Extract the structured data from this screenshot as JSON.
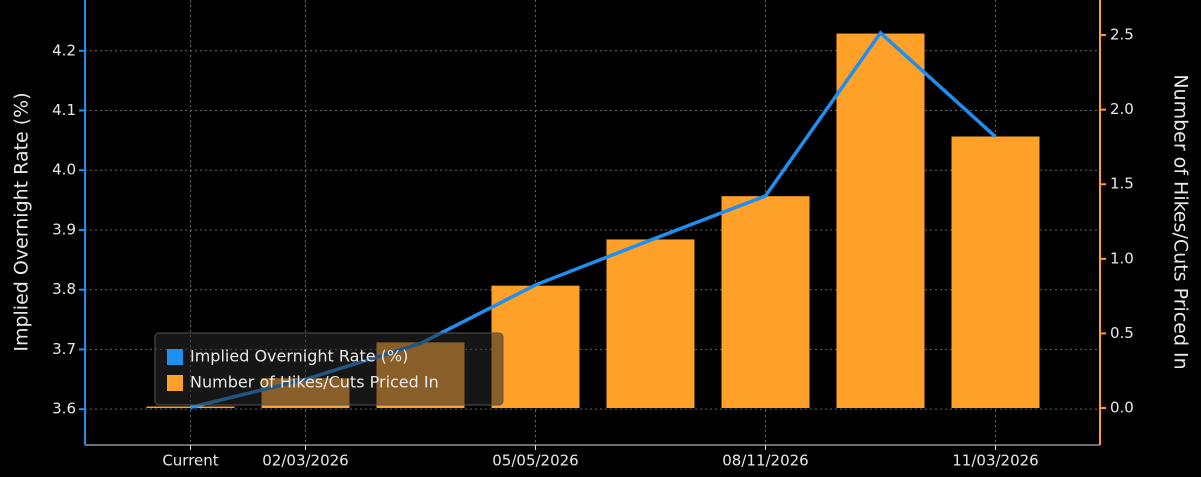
{
  "chart_data": {
    "type": "combo",
    "ylabel": "Implied Overnight Rate (%)",
    "y2label": "Number of Hikes/Cuts Priced In",
    "categories": [
      "Current",
      "02/03/2026",
      null,
      "05/05/2026",
      null,
      "08/11/2026",
      null,
      "11/03/2026"
    ],
    "series": [
      {
        "name": "Implied Overnight Rate (%)",
        "type": "line",
        "color": "#1e8ff0",
        "axis": "y",
        "values": [
          3.603,
          3.65,
          3.71,
          3.808,
          3.883,
          3.957,
          4.23,
          4.056
        ]
      },
      {
        "name": "Number of Hikes/Cuts Priced In",
        "type": "bar",
        "color": "#ffa028",
        "axis": "y2",
        "values": [
          0.01,
          0.2,
          0.44,
          0.82,
          1.13,
          1.42,
          2.51,
          1.82
        ]
      }
    ],
    "ylim": [
      3.54,
      4.285
    ],
    "yticks": [
      3.6,
      3.7,
      3.8,
      3.9,
      {
        "value": 4,
        "label": "4.0"
      },
      4.1,
      4.2
    ],
    "y2lim": [
      -0.248,
      2.735
    ],
    "y2ticks": [
      {
        "value": 0,
        "label": "0.0"
      },
      0.5,
      {
        "value": 1,
        "label": "1.0"
      },
      1.5,
      {
        "value": 2,
        "label": "2.0"
      },
      2.5
    ],
    "grid": true,
    "legend": "lower-left"
  }
}
